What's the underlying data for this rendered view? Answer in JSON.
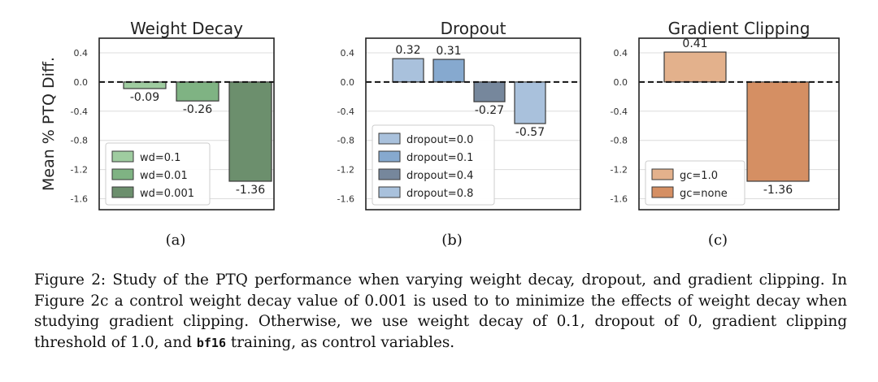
{
  "chart_data": [
    {
      "type": "bar",
      "title": "Weight Decay",
      "ylabel": "Mean % PTQ Diff.",
      "xlabel": "",
      "subplot_label": "(a)",
      "ylim": [
        -1.75,
        0.6
      ],
      "yticks": [
        "0.4",
        "0.0",
        "-0.4",
        "-0.8",
        "-1.2",
        "-1.6"
      ],
      "ytick_values": [
        0.4,
        0.0,
        -0.4,
        -0.8,
        -1.2,
        -1.6
      ],
      "reference_line": 0.0,
      "legend_position": "lower-left",
      "series": [
        {
          "name": "wd=0.1",
          "value": -0.09,
          "label": "-0.09",
          "color": "#9fcca0"
        },
        {
          "name": "wd=0.01",
          "value": -0.26,
          "label": "-0.26",
          "color": "#7fb383"
        },
        {
          "name": "wd=0.001",
          "value": -1.36,
          "label": "-1.36",
          "color": "#6c8f6d"
        }
      ]
    },
    {
      "type": "bar",
      "title": "Dropout",
      "ylabel": "",
      "xlabel": "",
      "subplot_label": "(b)",
      "ylim": [
        -1.75,
        0.6
      ],
      "yticks": [
        "0.4",
        "0.0",
        "-0.4",
        "-0.8",
        "-1.2",
        "-1.6"
      ],
      "ytick_values": [
        0.4,
        0.0,
        -0.4,
        -0.8,
        -1.2,
        -1.6
      ],
      "reference_line": 0.0,
      "legend_position": "lower-left",
      "series": [
        {
          "name": "dropout=0.0",
          "value": 0.32,
          "label": "0.32",
          "color": "#a9c1dc"
        },
        {
          "name": "dropout=0.1",
          "value": 0.31,
          "label": "0.31",
          "color": "#86a9cf"
        },
        {
          "name": "dropout=0.4",
          "value": -0.27,
          "label": "-0.27",
          "color": "#76879c"
        },
        {
          "name": "dropout=0.8",
          "value": -0.57,
          "label": "-0.57",
          "color": "#a9c1dc"
        }
      ]
    },
    {
      "type": "bar",
      "title": "Gradient Clipping",
      "ylabel": "",
      "xlabel": "",
      "subplot_label": "(c)",
      "ylim": [
        -1.75,
        0.6
      ],
      "yticks": [
        "0.4",
        "0.0",
        "-0.4",
        "-0.8",
        "-1.2",
        "-1.6"
      ],
      "ytick_values": [
        0.4,
        0.0,
        -0.4,
        -0.8,
        -1.2,
        -1.6
      ],
      "reference_line": 0.0,
      "legend_position": "lower-left",
      "series": [
        {
          "name": "gc=1.0",
          "value": 0.41,
          "label": "0.41",
          "color": "#e3b18c"
        },
        {
          "name": "gc=none",
          "value": -1.36,
          "label": "-1.36",
          "color": "#d58f63"
        }
      ]
    }
  ],
  "caption": {
    "part1": "Figure 2: Study of the PTQ performance when varying weight decay, dropout, and gradient clipping. In Figure 2c a control weight decay value of 0.001 is used to to minimize the effects of weight decay when studying gradient clipping. Otherwise, we use weight decay of 0.1, dropout of 0, gradient clipping threshold of 1.0, and ",
    "code": "bf16",
    "part2": " training, as control variables."
  }
}
